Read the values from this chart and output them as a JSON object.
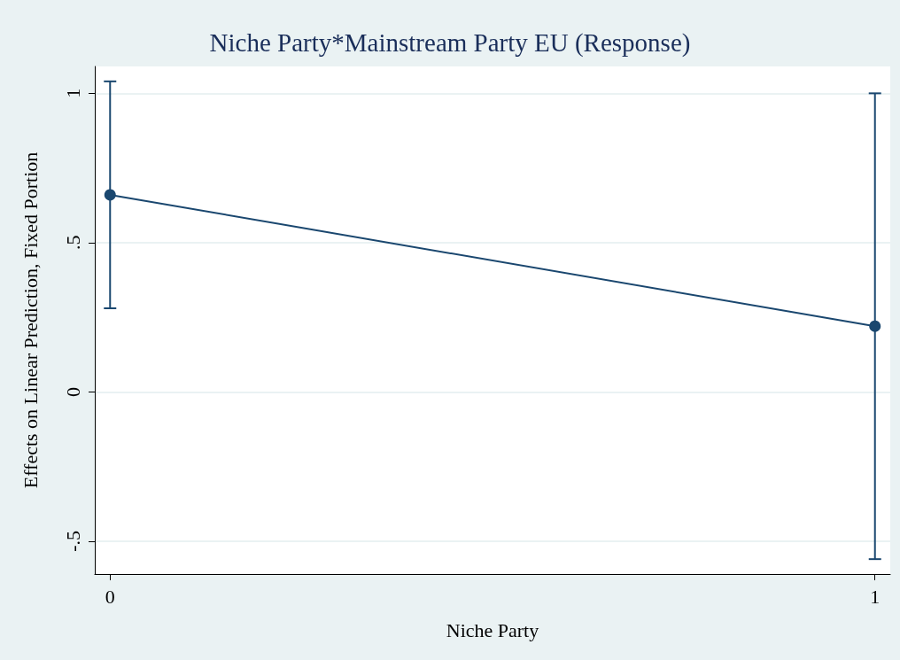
{
  "chart_data": {
    "type": "line",
    "title": "Niche Party*Mainstream Party EU (Response)",
    "xlabel": "Niche Party",
    "ylabel": "Effects on Linear Prediction, Fixed Portion",
    "x": [
      0,
      1
    ],
    "series": [
      {
        "color": "#1a476f",
        "values": [
          0.66,
          0.22
        ],
        "errors": [
          [
            0.28,
            1.04
          ],
          [
            -0.56,
            1.0
          ]
        ]
      }
    ],
    "xlim": [
      -0.02,
      1.02
    ],
    "xticks": [
      0,
      1
    ],
    "ylim": [
      -0.61,
      1.09
    ],
    "yticks": [
      {
        "value": -0.5,
        "label": "-.5"
      },
      0,
      {
        "value": 0.5,
        "label": ".5"
      },
      1
    ],
    "grid": "y",
    "marker": "circle",
    "line_style": "solid"
  }
}
